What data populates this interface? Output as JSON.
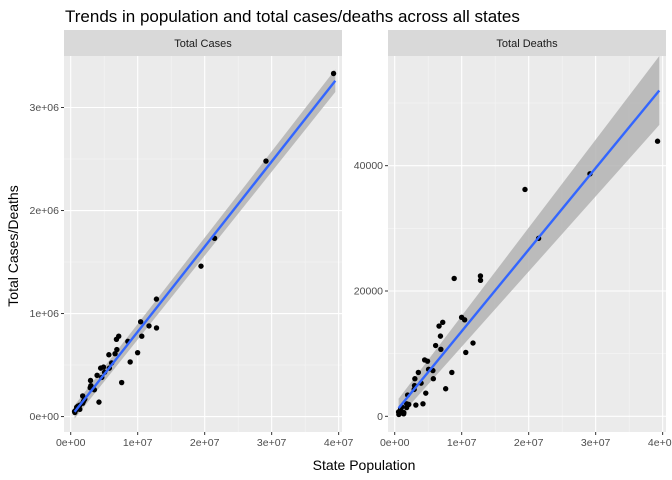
{
  "chart_data": {
    "type": "scatter",
    "title": "Trends in population and total cases/deaths across all states",
    "xlabel": "State Population",
    "ylabel": "Total Cases/Deaths",
    "grid": true,
    "trend": "linear fit with confidence band",
    "colors": {
      "panel_bg": "#ebebeb",
      "strip_bg": "#d9d9d9",
      "grid_major": "#ffffff",
      "points": "#000000",
      "fit_line": "#3366ff",
      "ribbon": "#b3b3b3"
    },
    "panels": [
      {
        "strip": "Total Cases",
        "xlim": [
          -1000000,
          40500000
        ],
        "ylim": [
          -150000,
          3500000
        ],
        "x_ticks": [
          0,
          10000000,
          20000000,
          30000000,
          40000000
        ],
        "x_tick_labels": [
          "0e+00",
          "1e+07",
          "2e+07",
          "3e+07",
          "4e+07"
        ],
        "y_ticks": [
          0,
          1000000,
          2000000,
          3000000
        ],
        "y_tick_labels": [
          "0e+00",
          "1e+06",
          "2e+06",
          "3e+06"
        ],
        "fit": {
          "x": [
            580000,
            39500000
          ],
          "y": [
            45000,
            3260000
          ],
          "lower": [
            -20000,
            3150000
          ],
          "upper": [
            110000,
            3370000
          ]
        },
        "points": [
          [
            580000,
            50000
          ],
          [
            620000,
            40000
          ],
          [
            730000,
            60000
          ],
          [
            890000,
            90000
          ],
          [
            1060000,
            100000
          ],
          [
            1340000,
            110000
          ],
          [
            1360000,
            70000
          ],
          [
            1790000,
            200000
          ],
          [
            1790000,
            130000
          ],
          [
            1930000,
            150000
          ],
          [
            2100000,
            170000
          ],
          [
            2910000,
            280000
          ],
          [
            2960000,
            350000
          ],
          [
            3010000,
            300000
          ],
          [
            3160000,
            280000
          ],
          [
            3530000,
            260000
          ],
          [
            3940000,
            400000
          ],
          [
            4220000,
            140000
          ],
          [
            4470000,
            470000
          ],
          [
            4640000,
            380000
          ],
          [
            4900000,
            480000
          ],
          [
            5060000,
            430000
          ],
          [
            5700000,
            600000
          ],
          [
            5770000,
            470000
          ],
          [
            6110000,
            520000
          ],
          [
            6620000,
            610000
          ],
          [
            6830000,
            750000
          ],
          [
            6890000,
            650000
          ],
          [
            7170000,
            780000
          ],
          [
            7610000,
            330000
          ],
          [
            8530000,
            730000
          ],
          [
            8880000,
            530000
          ],
          [
            9990000,
            620000
          ],
          [
            10440000,
            920000
          ],
          [
            10610000,
            780000
          ],
          [
            11690000,
            880000
          ],
          [
            12800000,
            1140000
          ],
          [
            12810000,
            860000
          ],
          [
            19450000,
            1460000
          ],
          [
            21480000,
            1730000
          ],
          [
            29150000,
            2480000
          ],
          [
            39240000,
            3330000
          ]
        ]
      },
      {
        "strip": "Total Deaths",
        "xlim": [
          -1000000,
          40500000
        ],
        "ylim": [
          -2500,
          57500
        ],
        "x_ticks": [
          0,
          10000000,
          20000000,
          30000000,
          40000000
        ],
        "x_tick_labels": [
          "0e+00",
          "1e+07",
          "2e+07",
          "3e+07",
          "4e+07"
        ],
        "y_ticks": [
          0,
          20000,
          40000
        ],
        "y_tick_labels": [
          "0",
          "20000",
          "40000"
        ],
        "fit": {
          "x": [
            580000,
            39500000
          ],
          "y": [
            1300,
            52000
          ],
          "lower": [
            -200,
            46500
          ],
          "upper": [
            2800,
            57500
          ]
        },
        "points": [
          [
            580000,
            700
          ],
          [
            620000,
            300
          ],
          [
            730000,
            800
          ],
          [
            890000,
            1200
          ],
          [
            1060000,
            1500
          ],
          [
            1340000,
            400
          ],
          [
            1360000,
            600
          ],
          [
            1790000,
            2000
          ],
          [
            1790000,
            1400
          ],
          [
            1930000,
            3400
          ],
          [
            2100000,
            1900
          ],
          [
            2910000,
            4300
          ],
          [
            2960000,
            4900
          ],
          [
            3010000,
            6000
          ],
          [
            3160000,
            1800
          ],
          [
            3530000,
            7000
          ],
          [
            3940000,
            5300
          ],
          [
            4220000,
            2000
          ],
          [
            4470000,
            9000
          ],
          [
            4640000,
            3700
          ],
          [
            4900000,
            8800
          ],
          [
            5060000,
            7500
          ],
          [
            5700000,
            7300
          ],
          [
            5770000,
            6000
          ],
          [
            6110000,
            11300
          ],
          [
            6620000,
            14400
          ],
          [
            6830000,
            12800
          ],
          [
            6890000,
            10700
          ],
          [
            7170000,
            15000
          ],
          [
            7610000,
            4400
          ],
          [
            8530000,
            7000
          ],
          [
            8880000,
            22000
          ],
          [
            9990000,
            15800
          ],
          [
            10440000,
            15400
          ],
          [
            10610000,
            10200
          ],
          [
            11690000,
            11700
          ],
          [
            12800000,
            22400
          ],
          [
            12810000,
            21700
          ],
          [
            19450000,
            36200
          ],
          [
            21480000,
            28400
          ],
          [
            29150000,
            38700
          ],
          [
            39240000,
            43900
          ]
        ]
      }
    ]
  }
}
